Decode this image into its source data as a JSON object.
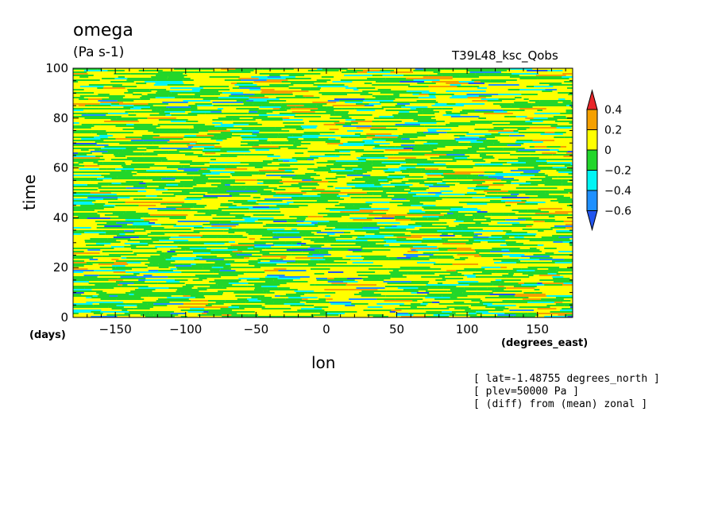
{
  "chart_data": {
    "type": "heatmap",
    "title": "omega",
    "units": "(Pa s-1)",
    "run_label": "T39L48_ksc_Qobs",
    "xlabel": "lon",
    "ylabel": "time",
    "x_unit": "(degrees_east)",
    "y_unit": "(days)",
    "xlim": [
      -180,
      175
    ],
    "ylim": [
      0,
      100
    ],
    "x_ticks": [
      "-150",
      "-100",
      "-50",
      "0",
      "50",
      "100",
      "150"
    ],
    "y_ticks": [
      "0",
      "20",
      "40",
      "60",
      "80",
      "100"
    ],
    "colorbar": {
      "levels": [
        "0.4",
        "0.2",
        "0",
        "-0.2",
        "-0.4",
        "-0.6"
      ],
      "colors": [
        "#e8262a",
        "#f5a000",
        "#ffff00",
        "#22d62a",
        "#00f5f5",
        "#1e90ff",
        "#2255ee"
      ],
      "extend": "both"
    },
    "notes": [
      "[ lat=-1.48755 degrees_north ]",
      "[ plev=50000 Pa ]",
      "[ (diff) from (mean) zonal ]"
    ],
    "grid": false,
    "legend": "right"
  }
}
